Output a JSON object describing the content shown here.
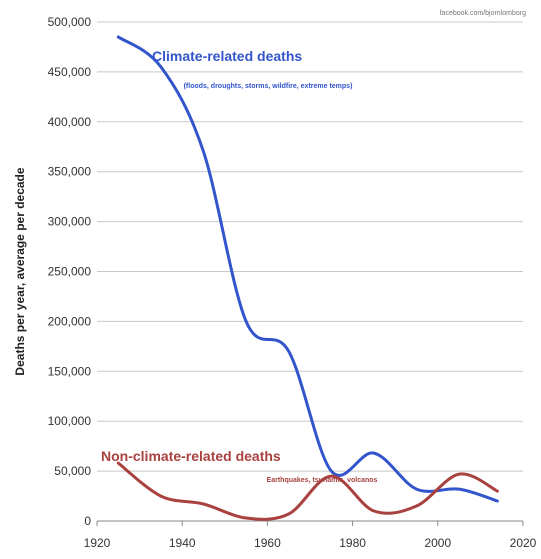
{
  "chart_data": {
    "type": "line",
    "source": "facebook.com/bjornlomborg",
    "ylabel": "Deaths per year, average per decade",
    "xlim": [
      1920,
      2020
    ],
    "ylim": [
      0,
      500000
    ],
    "x_ticks": [
      1920,
      1940,
      1960,
      1980,
      2000,
      2020
    ],
    "y_ticks": [
      0,
      50000,
      100000,
      150000,
      200000,
      250000,
      300000,
      350000,
      400000,
      450000,
      500000
    ],
    "y_tick_labels": [
      "0",
      "50,000",
      "100,000",
      "150,000",
      "200,000",
      "250,000",
      "300,000",
      "350,000",
      "400,000",
      "450,000",
      "500,000"
    ],
    "grid": true,
    "legend": "none",
    "series": [
      {
        "name": "Climate-related deaths",
        "note": "(floods, droughts, storms, wildfire, extreme temps)",
        "color": "#3355cc",
        "x": [
          1925,
          1935,
          1945,
          1955,
          1965,
          1975,
          1985,
          1995,
          2005,
          2014
        ],
        "y": [
          485000,
          455000,
          370000,
          200000,
          170000,
          50000,
          68000,
          32000,
          32000,
          20000
        ]
      },
      {
        "name": "Non-climate-related deaths",
        "note": "Earthquakes, tsunamis, volcanos",
        "color": "#a9413f",
        "x": [
          1925,
          1935,
          1945,
          1955,
          1965,
          1975,
          1985,
          1995,
          2005,
          2014
        ],
        "y": [
          58000,
          25000,
          17000,
          3000,
          7000,
          45000,
          10000,
          15000,
          47000,
          30000
        ]
      }
    ]
  }
}
